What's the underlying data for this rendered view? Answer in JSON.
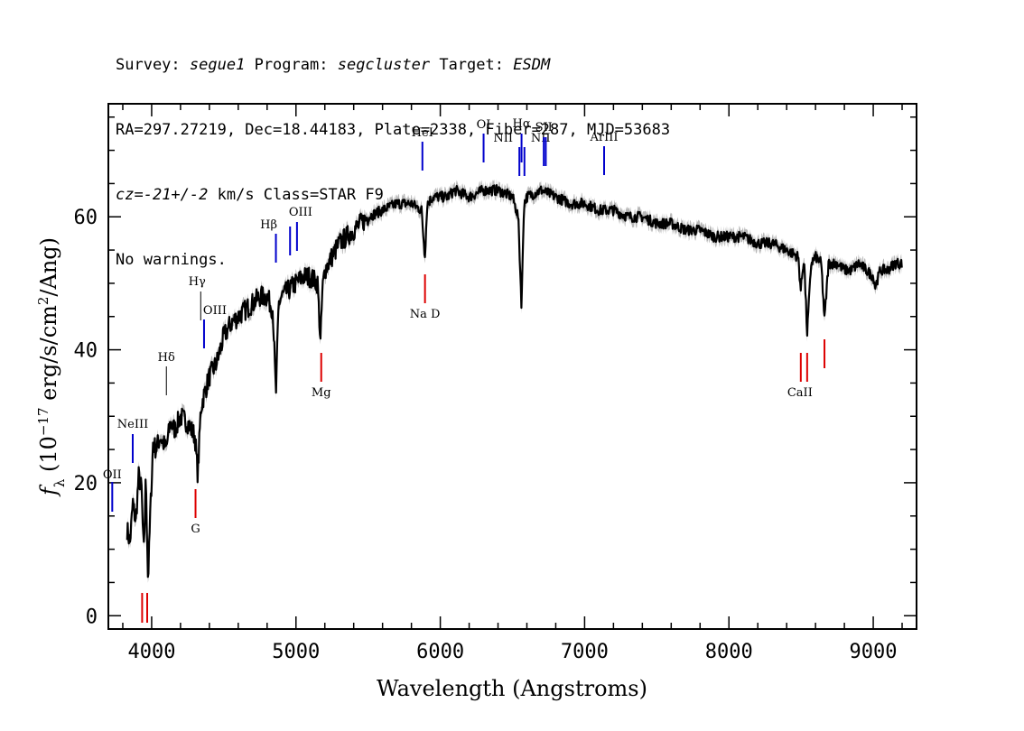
{
  "header": {
    "survey_label": "Survey:",
    "survey": "segue1",
    "program_label": "Program:",
    "program": "segcluster",
    "target_label": "Target:",
    "target": "ESDM",
    "line2": "RA=297.27219, Dec=18.44183, Plate=2338, Fiber=287, MJD=53683",
    "cz_label": "cz=",
    "cz_value": "-21+/-2",
    "cz_unit": " km/s Class=STAR F9",
    "line4": "No warnings."
  },
  "chart_data": {
    "type": "line",
    "xlabel": "Wavelength (Angstroms)",
    "ylabel": "f_λ (10^-17 erg/s/cm^2/Ang)",
    "xlim": [
      3700,
      9300
    ],
    "ylim": [
      -2,
      77
    ],
    "x_ticks": [
      4000,
      5000,
      6000,
      7000,
      8000,
      9000
    ],
    "y_ticks": [
      0,
      20,
      40,
      60
    ],
    "spectrum_color": "#000000",
    "error_color": "#b0b0b0",
    "emission_line_color": "#0000cc",
    "absorption_line_color": "#dd0000",
    "series": [
      {
        "x": [
          3830,
          3850,
          3870,
          3890,
          3910,
          3930,
          3945,
          3960,
          3975,
          3990,
          4010,
          4030,
          4060,
          4100,
          4130,
          4160,
          4200,
          4250,
          4300,
          4320,
          4340,
          4360,
          4400,
          4450,
          4500,
          4550,
          4600,
          4650,
          4700,
          4750,
          4800,
          4840,
          4861,
          4880,
          4900,
          4950,
          5000,
          5050,
          5100,
          5150,
          5170,
          5183,
          5200,
          5250,
          5300,
          5400,
          5500,
          5600,
          5700,
          5800,
          5870,
          5893,
          5910,
          5950,
          6000,
          6050,
          6100,
          6200,
          6300,
          6400,
          6500,
          6540,
          6563,
          6580,
          6600,
          6700,
          6800,
          6900,
          7000,
          7100,
          7200,
          7300,
          7400,
          7500,
          7600,
          7700,
          7800,
          7900,
          8000,
          8100,
          8200,
          8300,
          8400,
          8480,
          8498,
          8520,
          8542,
          8570,
          8600,
          8640,
          8662,
          8690,
          8750,
          8800,
          8850,
          8900,
          8950,
          9000,
          9014,
          9050,
          9100,
          9150,
          9200
        ],
        "y": [
          13,
          11,
          17,
          14,
          21,
          19,
          9,
          21,
          5,
          15,
          26,
          25,
          27,
          25,
          29,
          28,
          30,
          29,
          27,
          21,
          31,
          33,
          36,
          38,
          42,
          44,
          45,
          46,
          47,
          48,
          48,
          46,
          33,
          47,
          48,
          49,
          50,
          51,
          51,
          50,
          41,
          49,
          52,
          54,
          56,
          58,
          60,
          61,
          62,
          62,
          61,
          54,
          62,
          63,
          63,
          63,
          64,
          63,
          64,
          64,
          63,
          60,
          46.5,
          62,
          63,
          64,
          63,
          62,
          62,
          61,
          61,
          60,
          60,
          59,
          59,
          58,
          58,
          57,
          57,
          57,
          56,
          56,
          55,
          54,
          49,
          54,
          42.5,
          53,
          54,
          53,
          44.5,
          53,
          53,
          52,
          52,
          53,
          52,
          51,
          49.5,
          52,
          52,
          53,
          53
        ]
      }
    ],
    "emission_lines": [
      {
        "name": "OII",
        "wavelength": 3727
      },
      {
        "name": "NeIII",
        "wavelength": 3869
      },
      {
        "name": "Hδ",
        "wavelength": 4102
      },
      {
        "name": "Hγ",
        "wavelength": 4340
      },
      {
        "name": "OIII",
        "wavelength": 4363
      },
      {
        "name": "Hβ",
        "wavelength": 4861
      },
      {
        "name": "OIII",
        "wavelength": 4959
      },
      {
        "name": "OIII",
        "wavelength": 5007
      },
      {
        "name": "HeI",
        "wavelength": 5876
      },
      {
        "name": "OI",
        "wavelength": 6300
      },
      {
        "name": "NII",
        "wavelength": 6548
      },
      {
        "name": "Hα",
        "wavelength": 6563
      },
      {
        "name": "NII",
        "wavelength": 6583
      },
      {
        "name": "SII",
        "wavelength": 6717
      },
      {
        "name": "SII",
        "wavelength": 6731
      },
      {
        "name": "ArIII",
        "wavelength": 7135
      }
    ],
    "absorption_lines": [
      {
        "name": "",
        "wavelength": 3934
      },
      {
        "name": "",
        "wavelength": 3969
      },
      {
        "name": "G",
        "wavelength": 4304
      },
      {
        "name": "Mg",
        "wavelength": 5175
      },
      {
        "name": "Na D",
        "wavelength": 5894
      },
      {
        "name": "",
        "wavelength": 8498
      },
      {
        "name": "CaII",
        "wavelength": 8542
      },
      {
        "name": "",
        "wavelength": 8662
      }
    ]
  }
}
